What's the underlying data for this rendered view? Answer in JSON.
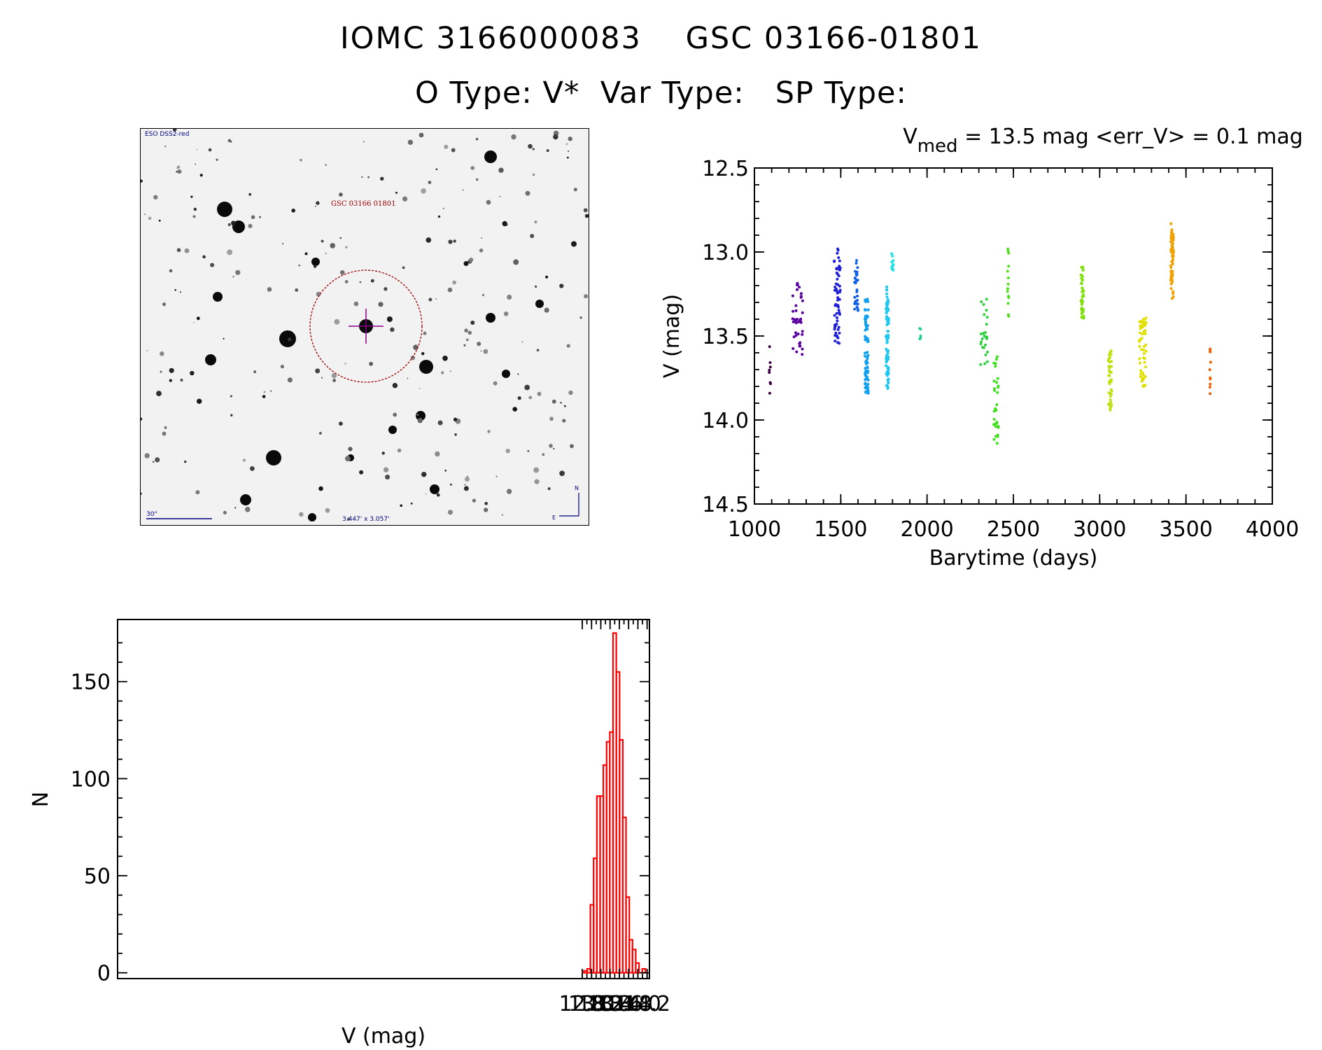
{
  "header": {
    "object_id": "IOMC 3166000083",
    "gsc_id": "GSC 03166-01801",
    "o_type": "O Type: V*",
    "var_type": "Var Type:",
    "sp_type": "SP Type:"
  },
  "finder_chart": {
    "survey_label": "ESO DSS2-red",
    "star_label": "GSC 03166 01801",
    "scale_label": "30\"",
    "fov_label": "3.447' x 3.057'",
    "north_label": "N",
    "east_label": "E",
    "circle_color": "#a00000",
    "marker_color": "#8a008a"
  },
  "chart_data": [
    {
      "type": "scatter",
      "title_prefix": "V",
      "title_sub": "med",
      "title_rest": " = 13.5 mag <err_V> = 0.1 mag",
      "xlabel": "Barytime (days)",
      "ylabel": "V (mag)",
      "xlim": [
        1000,
        4000
      ],
      "ylim": [
        12.5,
        14.5
      ],
      "y_inverted": true,
      "xticks": [
        1000,
        1500,
        2000,
        2500,
        3000,
        3500,
        4000
      ],
      "xtick_labels": [
        "1000",
        "1500",
        "2000",
        "2500",
        "3000",
        "3500",
        "4000"
      ],
      "yticks": [
        12.5,
        13.0,
        13.5,
        14.0,
        14.5
      ],
      "ytick_labels": [
        "12.5",
        "13.0",
        "13.5",
        "14.0",
        "14.5"
      ],
      "clusters": [
        {
          "x": 1090,
          "x_spread": 4,
          "y_min": 13.55,
          "y_max": 13.87,
          "n": 8,
          "color": "#3a0040"
        },
        {
          "x": 1250,
          "x_spread": 30,
          "y_min": 13.18,
          "y_max": 13.62,
          "n": 40,
          "color": "#5a00a0"
        },
        {
          "x": 1480,
          "x_spread": 18,
          "y_min": 12.98,
          "y_max": 13.55,
          "n": 60,
          "color": "#2020d8"
        },
        {
          "x": 1590,
          "x_spread": 10,
          "y_min": 13.05,
          "y_max": 13.35,
          "n": 30,
          "color": "#1060e8"
        },
        {
          "x": 1650,
          "x_spread": 10,
          "y_min": 13.28,
          "y_max": 13.85,
          "n": 80,
          "color": "#10a0f0"
        },
        {
          "x": 1770,
          "x_spread": 8,
          "y_min": 13.2,
          "y_max": 13.82,
          "n": 80,
          "color": "#20c8f0"
        },
        {
          "x": 1800,
          "x_spread": 6,
          "y_min": 12.98,
          "y_max": 13.12,
          "n": 12,
          "color": "#20e0e0"
        },
        {
          "x": 1960,
          "x_spread": 3,
          "y_min": 13.45,
          "y_max": 13.52,
          "n": 5,
          "color": "#20d090"
        },
        {
          "x": 2330,
          "x_spread": 20,
          "y_min": 13.28,
          "y_max": 13.72,
          "n": 25,
          "color": "#30d040"
        },
        {
          "x": 2400,
          "x_spread": 14,
          "y_min": 13.58,
          "y_max": 14.15,
          "n": 30,
          "color": "#40e020"
        },
        {
          "x": 2470,
          "x_spread": 4,
          "y_min": 12.98,
          "y_max": 13.4,
          "n": 14,
          "color": "#50e020"
        },
        {
          "x": 2900,
          "x_spread": 8,
          "y_min": 13.08,
          "y_max": 13.42,
          "n": 45,
          "color": "#80e010"
        },
        {
          "x": 3060,
          "x_spread": 10,
          "y_min": 13.58,
          "y_max": 13.95,
          "n": 40,
          "color": "#c0e010"
        },
        {
          "x": 3250,
          "x_spread": 20,
          "y_min": 13.38,
          "y_max": 13.82,
          "n": 55,
          "color": "#e0e000"
        },
        {
          "x": 3420,
          "x_spread": 8,
          "y_min": 12.83,
          "y_max": 13.28,
          "n": 60,
          "color": "#f0a000"
        },
        {
          "x": 3640,
          "x_spread": 3,
          "y_min": 13.48,
          "y_max": 13.86,
          "n": 10,
          "color": "#f06000"
        }
      ]
    },
    {
      "type": "bar",
      "histtype": "step",
      "xlabel": "V (mag)",
      "ylabel": "N",
      "xlim": [
        2.77,
        14.25
      ],
      "ylim": [
        -3,
        182
      ],
      "bar_color": "#ff0000",
      "xticks": [
        12.8,
        13.0,
        13.2,
        13.4,
        13.6,
        13.8,
        14.0,
        14.2
      ],
      "xtick_labels": [
        "12.8",
        "13.0",
        "13.2",
        "13.4",
        "13.6",
        "13.8",
        "14.0",
        "14.2"
      ],
      "yticks": [
        0,
        50,
        100,
        150
      ],
      "ytick_labels": [
        "0",
        "50",
        "100",
        "150"
      ],
      "bin_width": 0.07,
      "bins_start": [
        12.835,
        12.905,
        12.975,
        13.045,
        13.115,
        13.185,
        13.255,
        13.325,
        13.395,
        13.465,
        13.535,
        13.605,
        13.675,
        13.745,
        13.815,
        13.885,
        13.955,
        14.025,
        14.095
      ],
      "values": [
        1,
        2,
        35,
        59,
        91,
        91,
        107,
        119,
        124,
        175,
        155,
        120,
        80,
        39,
        17,
        12,
        5,
        0,
        2
      ]
    }
  ]
}
